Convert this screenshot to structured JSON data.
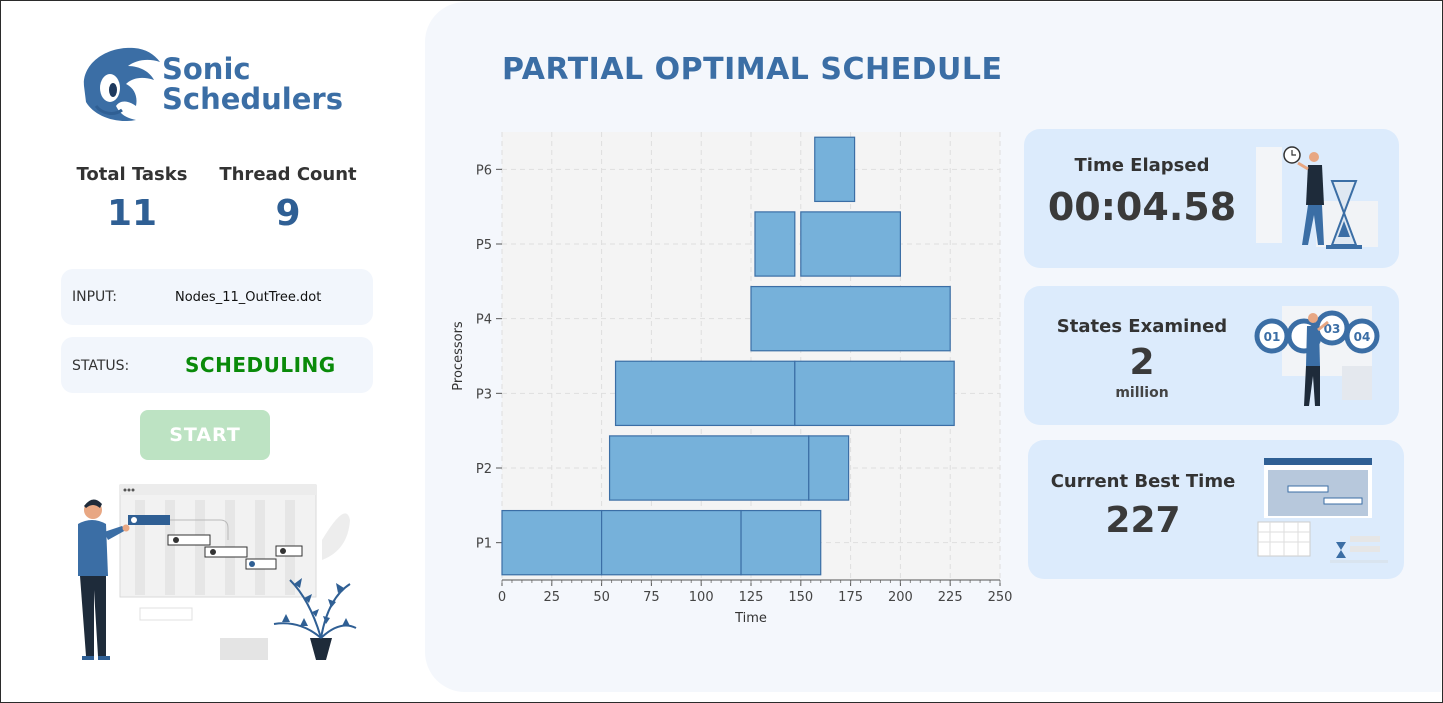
{
  "app": {
    "brand_line1": "Sonic",
    "brand_line2": "Schedulers"
  },
  "stats": {
    "total_tasks_label": "Total Tasks",
    "total_tasks_value": "11",
    "thread_count_label": "Thread Count",
    "thread_count_value": "9"
  },
  "input": {
    "label": "INPUT:",
    "value": "Nodes_11_OutTree.dot"
  },
  "status": {
    "label": "STATUS:",
    "value": "SCHEDULING",
    "color": "#0a8a0a"
  },
  "start_button": {
    "label": "START"
  },
  "main": {
    "title": "PARTIAL OPTIMAL SCHEDULE"
  },
  "cards": {
    "time_elapsed": {
      "label": "Time Elapsed",
      "value": "00:04.58"
    },
    "states_examined": {
      "label": "States Examined",
      "value": "2",
      "unit": "million"
    },
    "best_time": {
      "label": "Current Best Time",
      "value": "227"
    }
  },
  "chart_data": {
    "type": "gantt",
    "xlabel": "Time",
    "ylabel": "Processors",
    "xlim": [
      0,
      250
    ],
    "xticks": [
      0,
      25,
      50,
      75,
      100,
      125,
      150,
      175,
      200,
      225,
      250
    ],
    "processors": [
      "P1",
      "P2",
      "P3",
      "P4",
      "P5",
      "P6"
    ],
    "grid": true,
    "bar_color": "#76b1da",
    "tasks": [
      {
        "processor": "P1",
        "start": 0,
        "end": 50
      },
      {
        "processor": "P1",
        "start": 50,
        "end": 120
      },
      {
        "processor": "P1",
        "start": 120,
        "end": 160
      },
      {
        "processor": "P2",
        "start": 54,
        "end": 154
      },
      {
        "processor": "P2",
        "start": 154,
        "end": 174
      },
      {
        "processor": "P3",
        "start": 57,
        "end": 147
      },
      {
        "processor": "P3",
        "start": 147,
        "end": 227
      },
      {
        "processor": "P4",
        "start": 125,
        "end": 225
      },
      {
        "processor": "P5",
        "start": 127,
        "end": 147
      },
      {
        "processor": "P5",
        "start": 150,
        "end": 200
      },
      {
        "processor": "P6",
        "start": 157,
        "end": 177
      }
    ]
  }
}
